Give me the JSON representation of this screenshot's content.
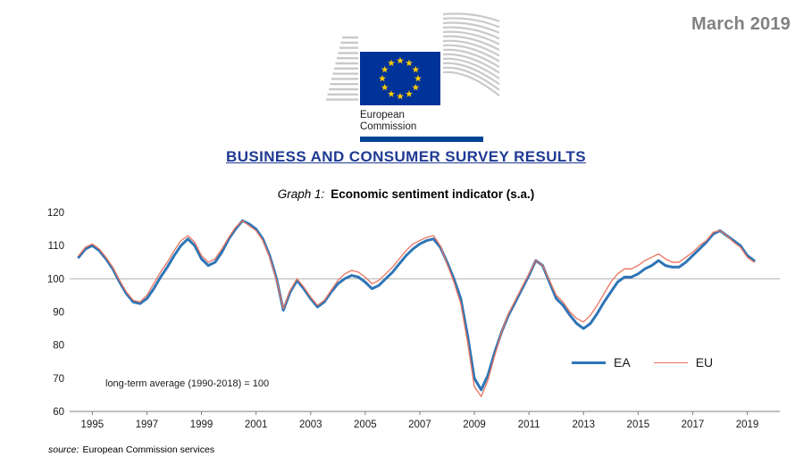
{
  "page": {
    "date_label": "March 2019",
    "title": "BUSINESS AND CONSUMER SURVEY RESULTS",
    "graph_label": "Graph 1:",
    "graph_title": "Economic sentiment indicator (s.a.)",
    "source_prefix": "source:",
    "source_text": "European Commission services"
  },
  "logo": {
    "line1": "European",
    "line2": "Commission",
    "flag_color": "#003399",
    "star_color": "#FFCC00",
    "bar_color": "#004494",
    "graphic_gray": "#c9c9c9"
  },
  "colors": {
    "title_blue": "#1F3A93",
    "date_gray": "#808285",
    "gridline_gray": "#b0b0b0",
    "axis_gray": "#7f7f7f"
  },
  "chart_data": {
    "type": "line",
    "title": "Economic sentiment indicator (s.a.)",
    "annotation": "long-term average (1990-2018) = 100",
    "ylim": [
      60,
      120
    ],
    "y_ticks": [
      120,
      110,
      100,
      90,
      80,
      70,
      60
    ],
    "x_ticks": [
      1995,
      1997,
      1999,
      2001,
      2003,
      2005,
      2007,
      2009,
      2011,
      2013,
      2015,
      2017,
      2019
    ],
    "reference_line": 100,
    "grid": "reference-line-only",
    "legend_position": "inside-lower-right",
    "x": [
      1994.5,
      1994.75,
      1995,
      1995.25,
      1995.5,
      1995.75,
      1996,
      1996.25,
      1996.5,
      1996.75,
      1997,
      1997.25,
      1997.5,
      1997.75,
      1998,
      1998.25,
      1998.5,
      1998.75,
      1999,
      1999.25,
      1999.5,
      1999.75,
      2000,
      2000.25,
      2000.5,
      2000.75,
      2001,
      2001.25,
      2001.5,
      2001.75,
      2002,
      2002.25,
      2002.5,
      2002.75,
      2003,
      2003.25,
      2003.5,
      2003.75,
      2004,
      2004.25,
      2004.5,
      2004.75,
      2005,
      2005.25,
      2005.5,
      2005.75,
      2006,
      2006.25,
      2006.5,
      2006.75,
      2007,
      2007.25,
      2007.5,
      2007.75,
      2008,
      2008.25,
      2008.5,
      2008.75,
      2009,
      2009.25,
      2009.5,
      2009.75,
      2010,
      2010.25,
      2010.5,
      2010.75,
      2011,
      2011.25,
      2011.5,
      2011.75,
      2012,
      2012.25,
      2012.5,
      2012.75,
      2013,
      2013.25,
      2013.5,
      2013.75,
      2014,
      2014.25,
      2014.5,
      2014.75,
      2015,
      2015.25,
      2015.5,
      2015.75,
      2016,
      2016.25,
      2016.5,
      2016.75,
      2017,
      2017.25,
      2017.5,
      2017.75,
      2018,
      2018.25,
      2018.5,
      2018.75,
      2019,
      2019.25
    ],
    "series": [
      {
        "name": "EA",
        "color": "#2E75B6",
        "width": 3,
        "values": [
          106.5,
          109,
          110,
          108.5,
          106,
          103,
          99,
          95.5,
          93,
          92.5,
          94,
          97,
          100.5,
          103.5,
          107,
          110,
          112,
          110,
          106,
          104,
          105,
          108,
          112,
          115,
          117.5,
          116.5,
          115,
          112,
          107,
          100,
          90.5,
          96,
          99.5,
          97,
          94,
          91.5,
          93,
          96,
          98.5,
          100,
          101,
          100.5,
          99,
          97,
          98,
          100,
          102,
          104.5,
          107,
          109,
          110.5,
          111.5,
          112,
          109.5,
          105,
          100,
          94,
          83,
          70,
          66.5,
          71,
          78,
          84,
          89,
          93,
          97,
          101,
          105.5,
          104,
          99,
          94,
          92,
          89,
          86.5,
          85,
          86.5,
          89.5,
          93,
          96,
          99,
          100.5,
          100.5,
          101.5,
          103,
          104,
          105.5,
          104,
          103.5,
          103.5,
          105,
          107,
          109,
          111,
          113.5,
          114.5,
          113,
          111.5,
          110,
          107,
          105.5
        ]
      },
      {
        "name": "EU",
        "color": "#E8735F",
        "width": 1.3,
        "values": [
          107,
          109.5,
          110.5,
          109,
          106.5,
          103.5,
          99.5,
          96,
          93.5,
          93,
          95,
          98.5,
          102,
          105,
          108.5,
          111.5,
          113,
          111,
          107,
          105,
          106,
          109,
          112.5,
          115.5,
          117.5,
          116,
          114.5,
          111.5,
          106.5,
          99.5,
          91,
          96.5,
          100,
          97.5,
          94.5,
          92,
          93.5,
          96.5,
          99.5,
          101.5,
          102.5,
          102,
          100.5,
          98.5,
          99.5,
          101.5,
          103.5,
          106,
          108.5,
          110.5,
          111.5,
          112.5,
          113,
          110,
          104.5,
          99,
          92.5,
          81,
          67.5,
          64.5,
          69.5,
          77,
          84,
          89.5,
          93.5,
          97.5,
          101.5,
          105.5,
          104,
          99.5,
          95,
          93,
          90,
          88,
          87,
          89,
          92,
          95.5,
          99,
          101.5,
          103,
          103,
          104,
          105.5,
          106.5,
          107.5,
          106,
          105,
          105,
          106.5,
          108,
          110,
          111.5,
          114,
          114.5,
          113,
          111,
          109.5,
          106.5,
          105
        ]
      }
    ]
  }
}
